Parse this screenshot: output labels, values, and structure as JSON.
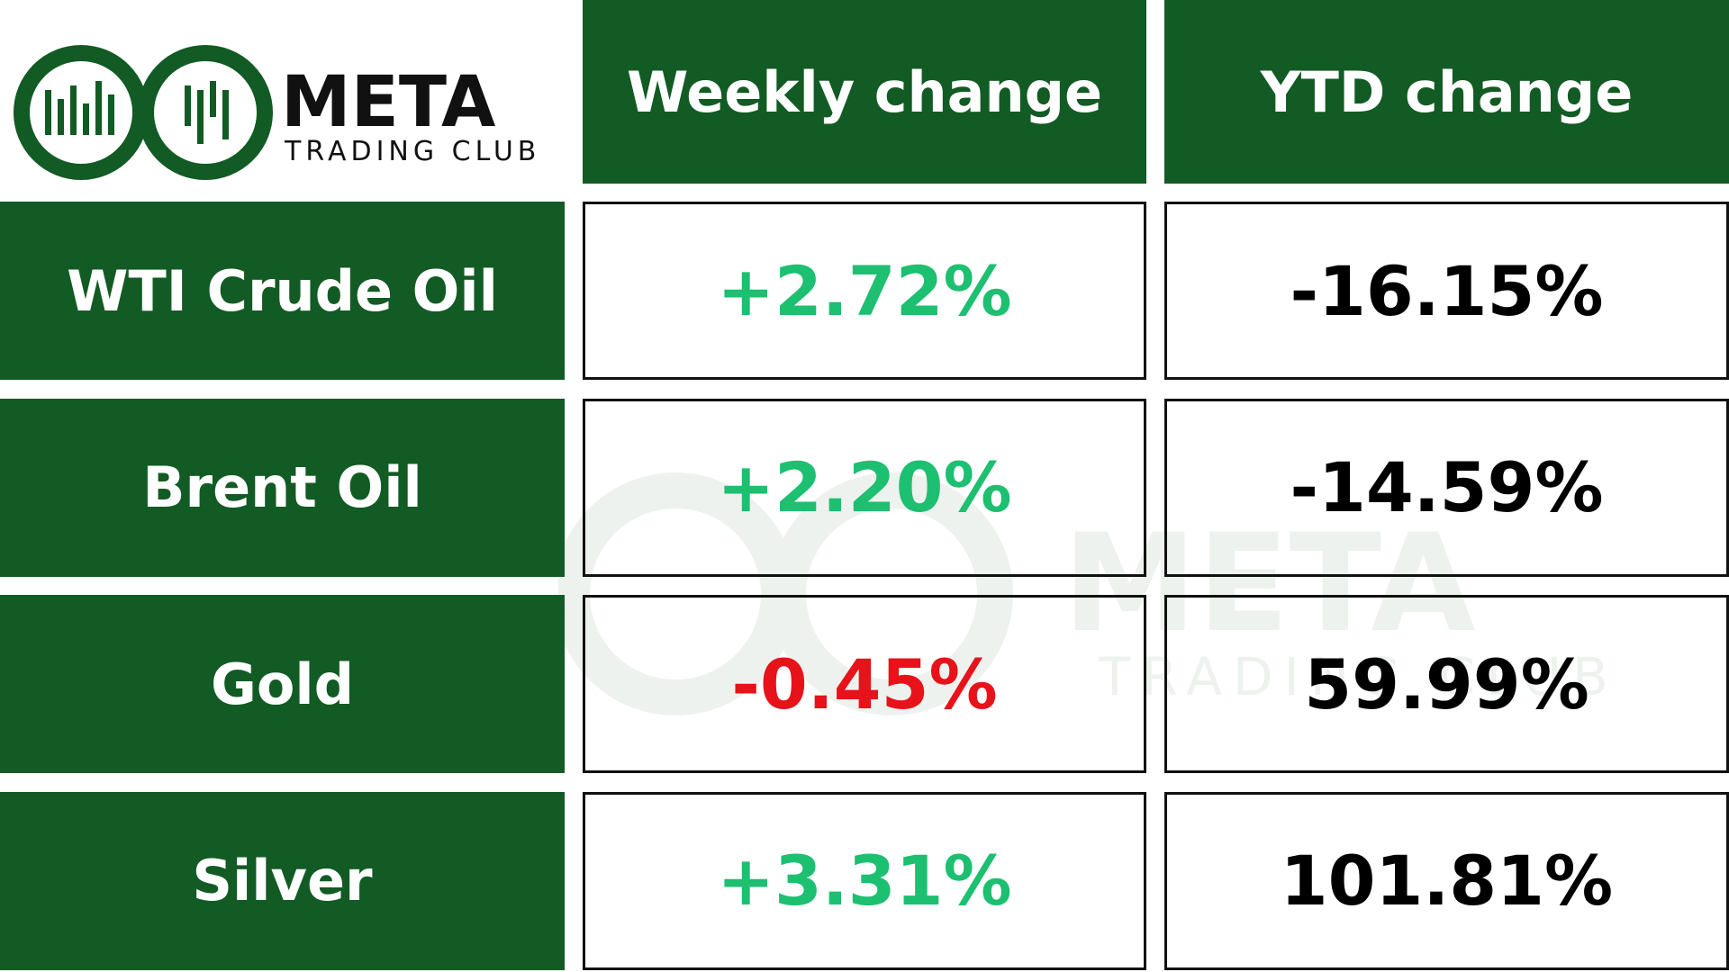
{
  "logo": {
    "title": "META",
    "subtitle": "TRADING CLUB"
  },
  "table": {
    "headers": [
      "Weekly change",
      "YTD change"
    ],
    "rows": [
      {
        "asset": "WTI Crude Oil",
        "weekly": "+2.72%",
        "weekly_color": "#1dbf70",
        "ytd": "-16.15%",
        "ytd_color": "#000000"
      },
      {
        "asset": "Brent Oil",
        "weekly": "+2.20%",
        "weekly_color": "#1dbf70",
        "ytd": "-14.59%",
        "ytd_color": "#000000"
      },
      {
        "asset": "Gold",
        "weekly": "-0.45%",
        "weekly_color": "#e8121a",
        "ytd": "59.99%",
        "ytd_color": "#000000"
      },
      {
        "asset": "Silver",
        "weekly": "+3.31%",
        "weekly_color": "#1dbf70",
        "ytd": "101.81%",
        "ytd_color": "#000000"
      }
    ]
  }
}
